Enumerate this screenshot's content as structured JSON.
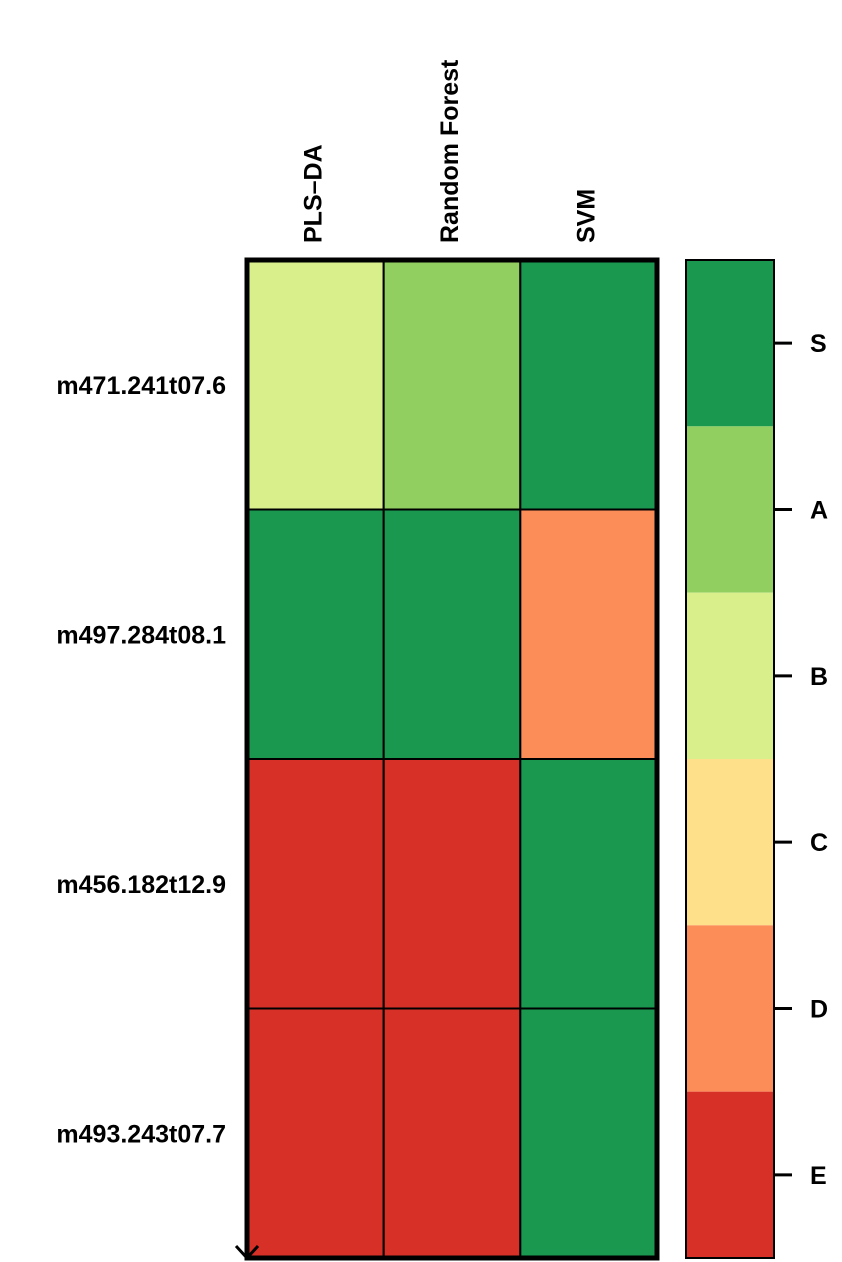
{
  "chart_data": {
    "type": "heatmap",
    "columns": [
      "PLS–DA",
      "Random Forest",
      "SVM"
    ],
    "rows": [
      "m471.241t07.6",
      "m497.284t08.1",
      "m456.182t12.9",
      "m493.243t07.7"
    ],
    "values": [
      [
        "B",
        "A",
        "S"
      ],
      [
        "S",
        "S",
        "D"
      ],
      [
        "E",
        "E",
        "S"
      ],
      [
        "E",
        "E",
        "S"
      ]
    ],
    "scale": [
      {
        "grade": "S",
        "color": "#1a9850"
      },
      {
        "grade": "A",
        "color": "#91cf60"
      },
      {
        "grade": "B",
        "color": "#d9ef8b"
      },
      {
        "grade": "C",
        "color": "#fee08b"
      },
      {
        "grade": "D",
        "color": "#fc8d59"
      },
      {
        "grade": "E",
        "color": "#d73027"
      }
    ],
    "legend_position": "right"
  }
}
